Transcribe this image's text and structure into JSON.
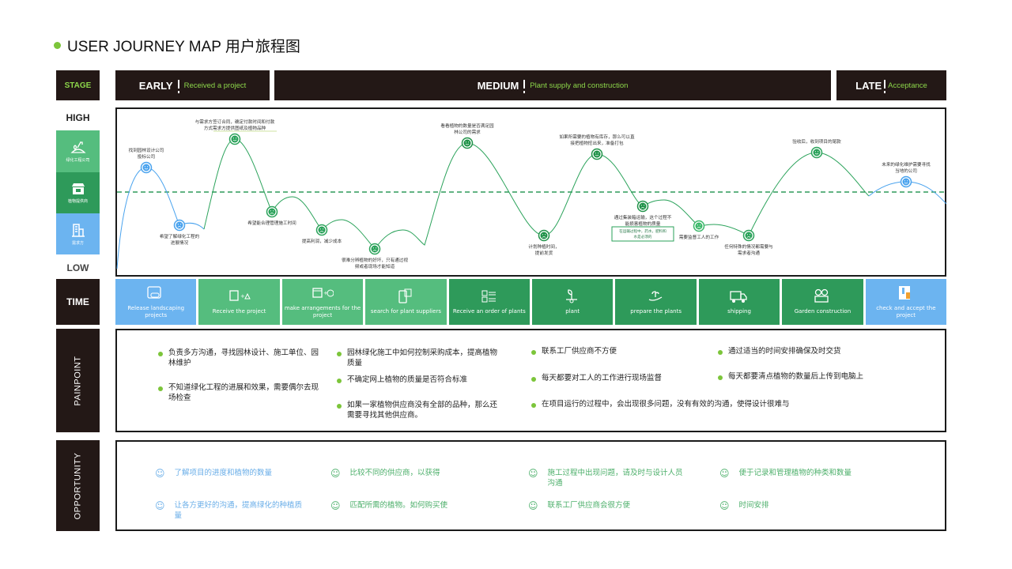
{
  "title": "USER JOURNEY MAP 用户旅程图",
  "colors": {
    "accent": "#7cc53a",
    "dark": "#231816",
    "green": "#2e9a5a",
    "light_green": "#55bd7e",
    "blue": "#6cb4f0"
  },
  "labels": {
    "stage": "STAGE",
    "high": "HIGH",
    "low": "LOW",
    "time": "TIME",
    "painpoint": "PAINPOINT",
    "opportunity": "OPPORTUNITY"
  },
  "roles": [
    {
      "label": "绿化工程公司",
      "icon": "gardener-icon"
    },
    {
      "label": "植物提供商",
      "icon": "shop-icon"
    },
    {
      "label": "需求方",
      "icon": "building-icon"
    }
  ],
  "stages": [
    {
      "name": "EARLY",
      "desc": "Received a project"
    },
    {
      "name": "MEDIUM",
      "desc": "Plant supply and construction"
    },
    {
      "name": "LATE",
      "desc": "Acceptance"
    }
  ],
  "journey": [
    {
      "mood": "happy",
      "label": [
        "找到园林设计公司",
        "投标公司"
      ]
    },
    {
      "mood": "sad",
      "label": [
        "希望了解绿化工程的",
        "进展情况"
      ]
    },
    {
      "mood": "happy",
      "label": [
        "与需求方签订合同，确定付款时间和付款",
        "方式需求方提供图纸及植物品种"
      ]
    },
    {
      "mood": "sad",
      "label": [
        "希望能合理管理施工时间"
      ]
    },
    {
      "mood": "sad",
      "label": [
        "提高利润，减少成本"
      ]
    },
    {
      "mood": "sad",
      "label": [
        "很难分辨植物的好坏，只有通过视",
        "频或者现场才能知道"
      ]
    },
    {
      "mood": "happy",
      "label": [
        "看看植物的数量是否满足园",
        "林公司的需求"
      ]
    },
    {
      "mood": "sad",
      "label": [
        "计划种植时间，",
        "提前发货"
      ]
    },
    {
      "mood": "happy",
      "label": [
        "如果所需要的植物有库存，那么可以直",
        "接把植物挖出来，准备打包"
      ]
    },
    {
      "mood": "sad",
      "label": [
        "通过集装箱运输，这个过程不",
        "能损害植物的质量"
      ],
      "note": [
        "在运输过程中，药水，肥料和",
        "水是必须的"
      ]
    },
    {
      "mood": "sad",
      "label": [
        "需要监督工人的工作"
      ]
    },
    {
      "mood": "sad",
      "label": [
        "任何特殊的情况都需要与",
        "需求者沟通"
      ]
    },
    {
      "mood": "happy",
      "label": [
        "验收后，收到项目的尾款"
      ]
    },
    {
      "mood": "happy",
      "label": [
        "未来的绿化维护需要寻找",
        "当地的公司"
      ]
    }
  ],
  "time_steps": [
    {
      "label": "Release landscaping projects",
      "icon": "document-icon"
    },
    {
      "label": "Receive the project",
      "icon": "blueprint-icon"
    },
    {
      "label": "make arrangements for the project",
      "icon": "calendar-icon"
    },
    {
      "label": "search for plant suppliers",
      "icon": "phone-search-icon"
    },
    {
      "label": "Receive an order of plants",
      "icon": "checklist-icon"
    },
    {
      "label": "plant",
      "icon": "planting-icon"
    },
    {
      "label": "prepare the plants",
      "icon": "hand-plant-icon"
    },
    {
      "label": "shipping",
      "icon": "truck-icon"
    },
    {
      "label": "Garden construction",
      "icon": "trees-icon"
    },
    {
      "label": "check and accept the project",
      "icon": "clipboard-icon"
    }
  ],
  "painpoints": [
    "负责多方沟通，寻找园林设计、施工单位、园林维护",
    "不知道绿化工程的进展和效果，需要偶尔去现场检查",
    "园林绿化施工中如何控制采购成本，提高植物质量",
    "不确定网上植物的质量是否符合标准",
    "如果一家植物供应商没有全部的品种，那么还需要寻找其他供应商。",
    "联系工厂供应商不方便",
    "每天都要对工人的工作进行现场监督",
    "在项目运行的过程中，会出现很多问题，没有有效的沟通，使得设计很难与",
    "通过适当的时间安排确保及时交货",
    "每天都要清点植物的数量后上传到电脑上"
  ],
  "opportunities": [
    "了解项目的进度和植物的数量",
    "让各方更好的沟通，提高绿化的种植质量",
    "比较不同的供应商，以获得",
    "匹配所需的植物。如何购买使",
    "施工过程中出现问题，请及时与设计人员沟通",
    "联系工厂供应商会很方便",
    "便于记录和管理植物的种类和数量",
    "时间安排"
  ]
}
